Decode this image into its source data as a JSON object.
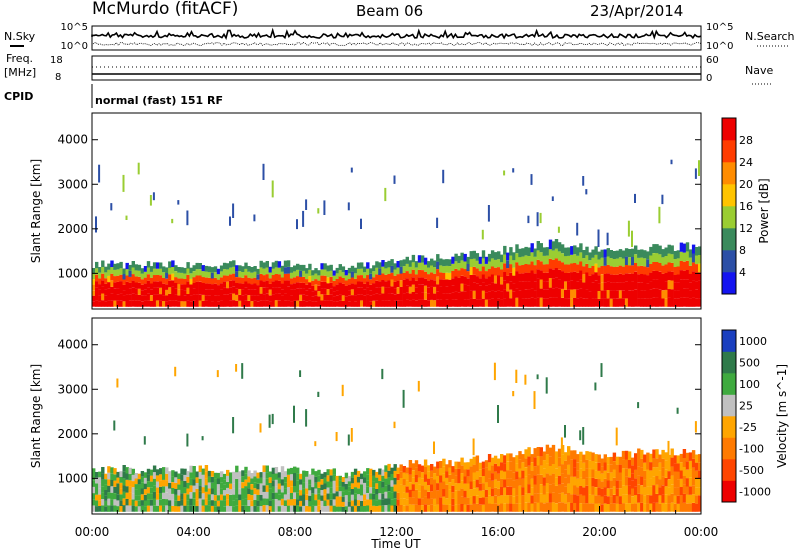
{
  "header": {
    "station": "McMurdo (fitACF)",
    "beam": "Beam 06",
    "date": "23/Apr/2014"
  },
  "strip": {
    "nsky_label": "N.Sky",
    "nsearch_label": "N.Search",
    "noise_ticks_left": [
      "10^5",
      "10^0"
    ],
    "noise_ticks_right": [
      "10^5",
      "10^0"
    ],
    "freq_label_top": "Freq.",
    "freq_label_unit": "[MHz]",
    "freq_ticks": [
      "18",
      "8"
    ],
    "nave_label": "Nave",
    "nave_ticks": [
      "60",
      "0"
    ],
    "cpid_label": "CPID",
    "cpid_text": "normal (fast) 151 RF"
  },
  "panels": {
    "ylabel": "Slant Range [km]",
    "xlabel": "Time UT"
  },
  "colors": {
    "power_scale": [
      "#1414f0",
      "#2c4fa6",
      "#3a8a5c",
      "#9acd32",
      "#ffc400",
      "#ff8c00",
      "#ff3c00",
      "#ee0000"
    ],
    "velocity_scale": [
      "#1a3fbf",
      "#2f7a4a",
      "#3faa3f",
      "#c0c0c0",
      "#ffa500",
      "#ff7a00",
      "#ff4500",
      "#ee0000"
    ]
  },
  "chart_data": [
    {
      "type": "heatmap",
      "name": "power_panel",
      "ylabel": "Slant Range [km]",
      "x_ticks": [
        "00:00",
        "04:00",
        "08:00",
        "12:00",
        "16:00",
        "20:00",
        "00:00"
      ],
      "y_ticks": [
        1000,
        2000,
        3000,
        4000
      ],
      "ylim": [
        200,
        4600
      ],
      "xlim_hours": [
        0,
        24
      ],
      "colorbar": {
        "label": "Power [dB]",
        "ticks": [
          "4",
          "8",
          "12",
          "16",
          "20",
          "24",
          "28"
        ],
        "range": [
          0,
          32
        ]
      },
      "echo_profile": [
        {
          "x": 0,
          "top": 1200
        },
        {
          "x": 4,
          "top": 1200
        },
        {
          "x": 8,
          "top": 1200
        },
        {
          "x": 10,
          "top": 1100
        },
        {
          "x": 12,
          "top": 1300
        },
        {
          "x": 14,
          "top": 1350
        },
        {
          "x": 16,
          "top": 1500
        },
        {
          "x": 18,
          "top": 1700
        },
        {
          "x": 20,
          "top": 1500
        },
        {
          "x": 22,
          "top": 1600
        },
        {
          "x": 24,
          "top": 1600
        }
      ]
    },
    {
      "type": "heatmap",
      "name": "velocity_panel",
      "ylabel": "Slant Range [km]",
      "xlabel": "Time UT",
      "x_ticks": [
        "00:00",
        "04:00",
        "08:00",
        "12:00",
        "16:00",
        "20:00",
        "00:00"
      ],
      "y_ticks": [
        1000,
        2000,
        3000,
        4000
      ],
      "ylim": [
        200,
        4600
      ],
      "xlim_hours": [
        0,
        24
      ],
      "colorbar": {
        "label": "Velocity [m s^-1]",
        "ticks": [
          "1000",
          "500",
          "100",
          "25",
          "-25",
          "-100",
          "-500",
          "-1000"
        ]
      }
    }
  ]
}
